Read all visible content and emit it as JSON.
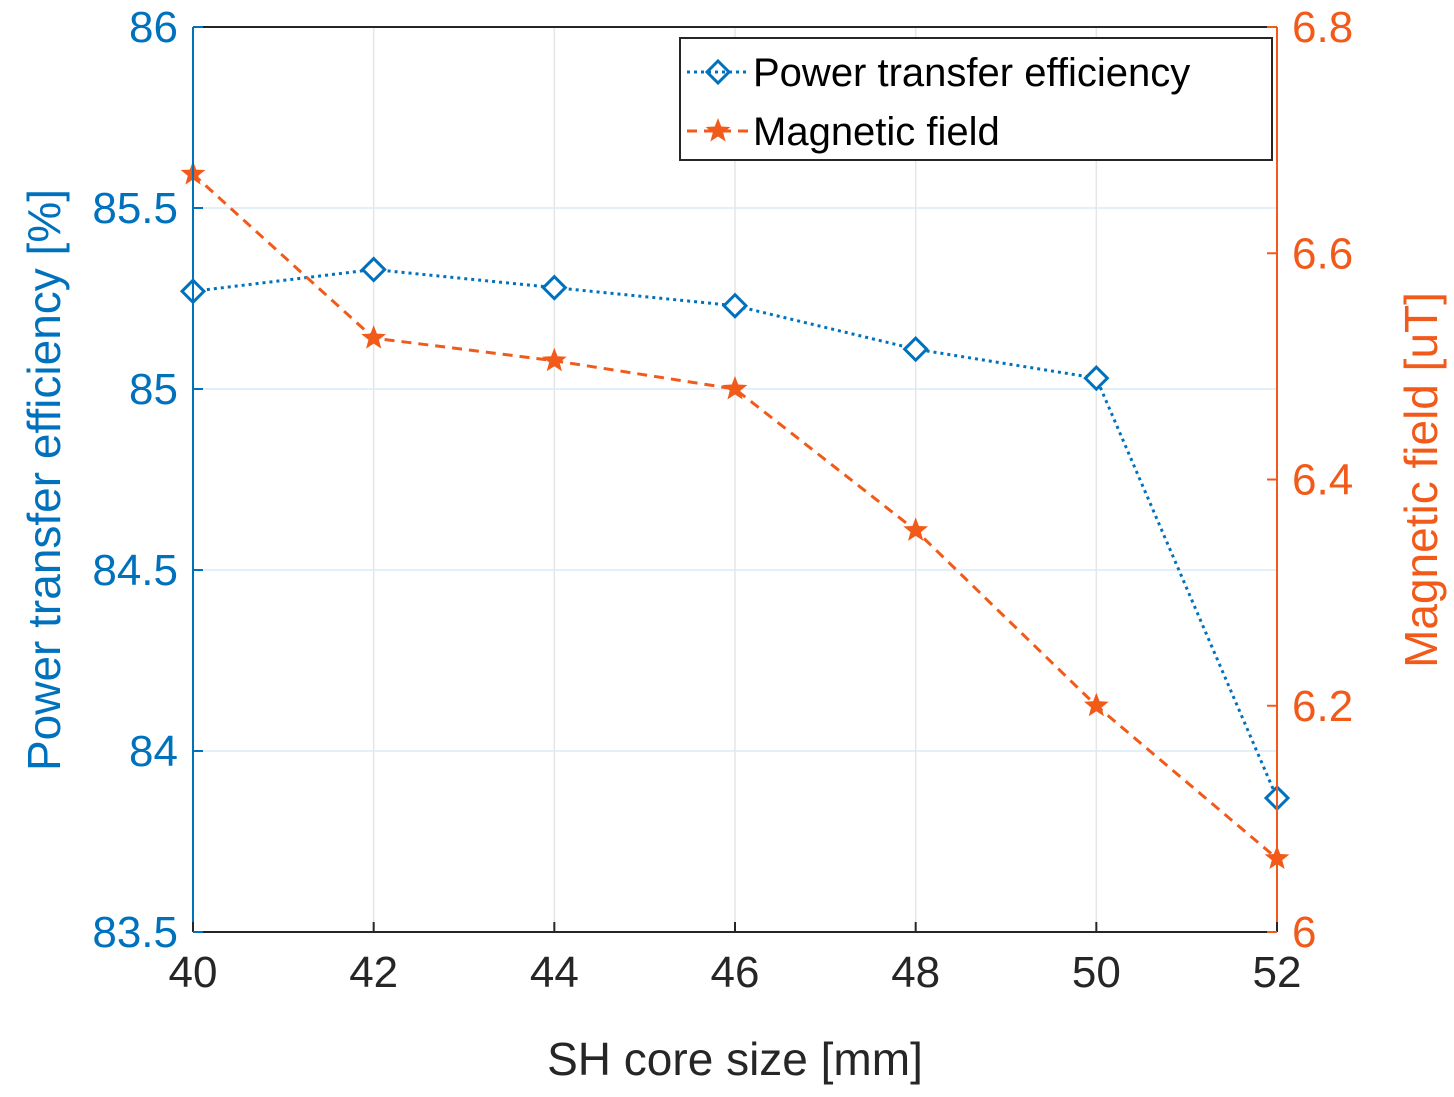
{
  "chart_data": {
    "type": "line",
    "x": [
      40,
      42,
      44,
      46,
      48,
      50,
      52
    ],
    "xlim": [
      40,
      52
    ],
    "xticks": [
      "40",
      "42",
      "44",
      "46",
      "48",
      "50",
      "52"
    ],
    "xlabel": "SH core size [mm]",
    "ylabel_left": "Power transfer efficiency [%]",
    "ylim_left": [
      83.5,
      86
    ],
    "yticks_left": [
      "83.5",
      "84",
      "84.5",
      "85",
      "85.5",
      "86"
    ],
    "ylabel_right": "Magnetic field [uT]",
    "ylim_right": [
      6,
      6.8
    ],
    "yticks_right": [
      "6",
      "6.2",
      "6.4",
      "6.6",
      "6.8"
    ],
    "grid": true,
    "legend_position": "top-right",
    "series": [
      {
        "name": "Power transfer efficiency",
        "axis": "left",
        "color": "#0072BD",
        "marker": "diamond",
        "line_style": "dotted",
        "values": [
          85.27,
          85.33,
          85.28,
          85.23,
          85.11,
          85.03,
          83.87
        ]
      },
      {
        "name": "Magnetic field",
        "axis": "right",
        "color": "#F25A1A",
        "marker": "star",
        "line_style": "dashed",
        "values": [
          6.67,
          6.525,
          6.505,
          6.48,
          6.355,
          6.2,
          6.065
        ]
      }
    ]
  }
}
